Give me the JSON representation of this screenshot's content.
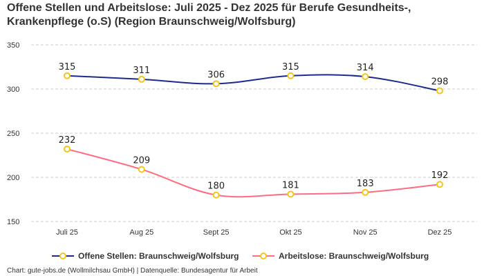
{
  "chart_data": {
    "type": "line",
    "title": "Offene Stellen und Arbeitslose: Juli 2025 - Dez 2025 für Berufe Gesundheits-, Krankenpflege (o.S) (Region Braunschweig/Wolfsburg)",
    "categories": [
      "Juli 25",
      "Aug 25",
      "Sept 25",
      "Okt 25",
      "Nov 25",
      "Dez 25"
    ],
    "series": [
      {
        "name": "Offene Stellen: Braunschweig/Wolfsburg",
        "values": [
          315,
          311,
          306,
          315,
          314,
          298
        ],
        "color": "#1b2a8c"
      },
      {
        "name": "Arbeitslose: Braunschweig/Wolfsburg",
        "values": [
          232,
          209,
          180,
          181,
          183,
          192
        ],
        "color": "#ff6b81"
      }
    ],
    "marker_color": "#f5c518",
    "ylim": [
      150,
      350
    ],
    "yticks": [
      150,
      200,
      250,
      300,
      350
    ],
    "grid": true,
    "legend": "bottom",
    "xlabel": "",
    "ylabel": ""
  },
  "footer": {
    "source": "Chart: gute-jobs.de (Wollmilchsau GmbH) | Datenquelle: Bundesagentur für Arbeit"
  }
}
